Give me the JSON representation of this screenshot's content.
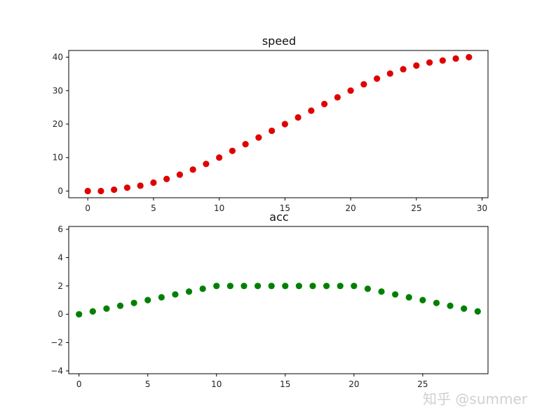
{
  "chart_data": [
    {
      "type": "scatter",
      "title": "speed",
      "xlabel": "",
      "ylabel": "",
      "xlim": [
        -1.45,
        30.45
      ],
      "ylim": [
        -2,
        42
      ],
      "xticks": [
        0,
        5,
        10,
        15,
        20,
        25,
        30
      ],
      "yticks": [
        0,
        10,
        20,
        30,
        40
      ],
      "grid": false,
      "color": "#e00000",
      "x": [
        0,
        1,
        2,
        3,
        4,
        5,
        6,
        7,
        8,
        9,
        10,
        11,
        12,
        13,
        14,
        15,
        16,
        17,
        18,
        19,
        20,
        21,
        22,
        23,
        24,
        25,
        26,
        27,
        28,
        29
      ],
      "y": [
        0,
        0,
        0.4,
        1,
        1.6,
        2.5,
        3.6,
        4.9,
        6.4,
        8.1,
        10,
        12,
        14,
        16,
        18,
        20,
        22,
        24,
        26,
        28,
        30,
        31.9,
        33.6,
        35.1,
        36.4,
        37.5,
        38.4,
        39,
        39.6,
        40
      ]
    },
    {
      "type": "scatter",
      "title": "acc",
      "xlabel": "",
      "ylabel": "",
      "xlim": [
        -0.75,
        29.75
      ],
      "ylim": [
        -4.2,
        6.2
      ],
      "xticks": [
        0,
        5,
        10,
        15,
        20,
        25
      ],
      "yticks": [
        -4,
        -2,
        0,
        2,
        4,
        6
      ],
      "grid": false,
      "color": "#008000",
      "x": [
        0,
        1,
        2,
        3,
        4,
        5,
        6,
        7,
        8,
        9,
        10,
        11,
        12,
        13,
        14,
        15,
        16,
        17,
        18,
        19,
        20,
        21,
        22,
        23,
        24,
        25,
        26,
        27,
        28,
        29
      ],
      "y": [
        0,
        0.2,
        0.4,
        0.6,
        0.8,
        1,
        1.2,
        1.4,
        1.6,
        1.8,
        2,
        2,
        2,
        2,
        2,
        2,
        2,
        2,
        2,
        2,
        2,
        1.8,
        1.6,
        1.4,
        1.2,
        1,
        0.8,
        0.6,
        0.4,
        0.2
      ]
    }
  ],
  "watermark": "知乎 @summer"
}
